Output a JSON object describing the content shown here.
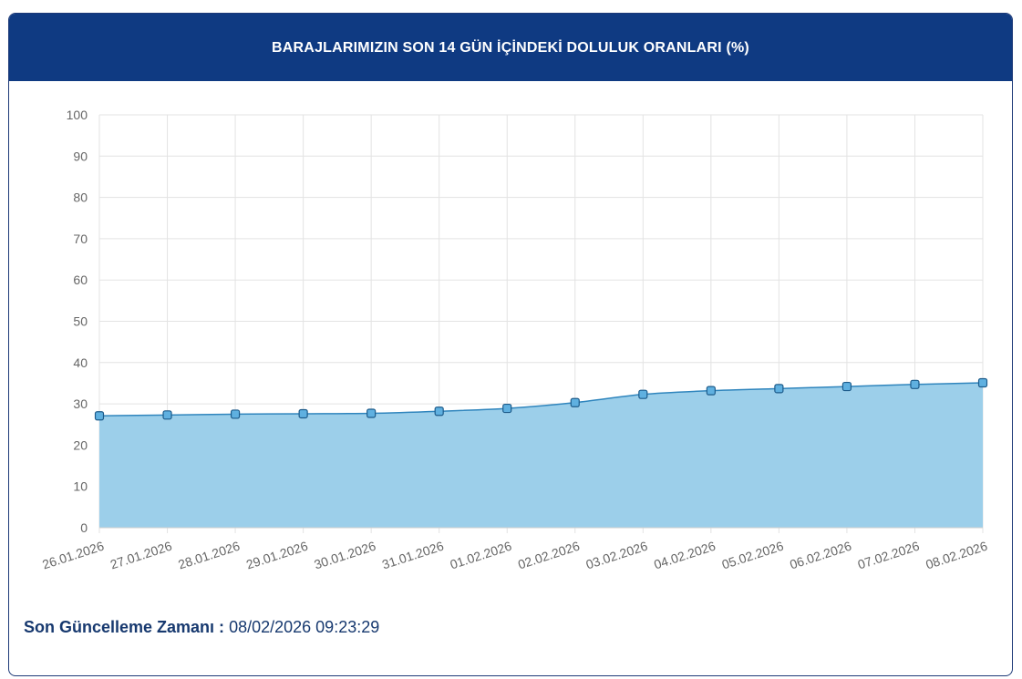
{
  "header": {
    "title": "BARAJLARIMIZIN SON 14 GÜN İÇİNDEKİ DOLULUK ORANLARI (%)"
  },
  "chart_data": {
    "type": "area",
    "categories": [
      "26.01.2026",
      "27.01.2026",
      "28.01.2026",
      "29.01.2026",
      "30.01.2026",
      "31.01.2026",
      "01.02.2026",
      "02.02.2026",
      "03.02.2026",
      "04.02.2026",
      "05.02.2026",
      "06.02.2026",
      "07.02.2026",
      "08.02.2026"
    ],
    "series": [
      {
        "values": [
          27.1,
          27.3,
          27.5,
          27.6,
          27.7,
          28.2,
          28.9,
          30.3,
          32.3,
          33.2,
          33.7,
          34.2,
          34.7,
          35.1
        ]
      }
    ],
    "yticks": [
      "0",
      "10",
      "20",
      "30",
      "40",
      "50",
      "60",
      "70",
      "80",
      "90",
      "100"
    ],
    "ylim": [
      0,
      100
    ],
    "grid": true,
    "colors": {
      "fill": "#9ccfea",
      "line": "#2f85bd",
      "marker": "#2f85bd",
      "grid": "#e3e3e3"
    }
  },
  "footer": {
    "label": "Son Güncelleme Zamanı :",
    "value": "08/02/2026 09:23:29"
  }
}
